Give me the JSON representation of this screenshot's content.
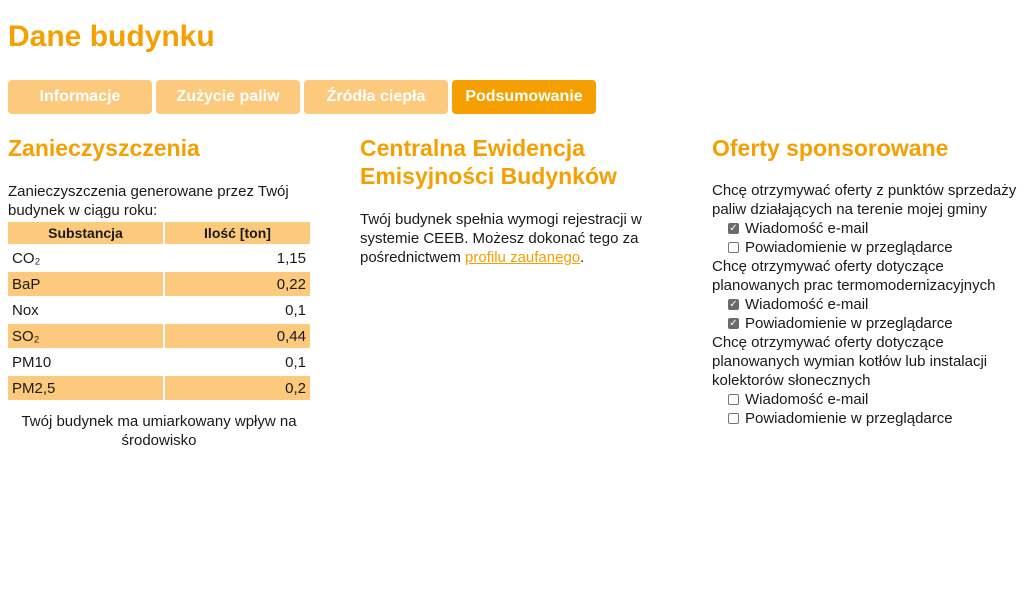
{
  "page": {
    "title": "Dane budynku"
  },
  "tabs": [
    {
      "label": "Informacje",
      "active": false
    },
    {
      "label": "Zużycie paliw",
      "active": false
    },
    {
      "label": "Źródła ciepła",
      "active": false
    },
    {
      "label": "Podsumowanie",
      "active": true
    }
  ],
  "pollution": {
    "heading": "Zanieczyszczenia",
    "intro": "Zanieczyszczenia generowane przez Twój budynek w ciągu roku:",
    "table": {
      "headers": [
        "Substancja",
        "Ilość [ton]"
      ],
      "rows": [
        {
          "substance": "CO₂",
          "amount": "1,15"
        },
        {
          "substance": "BaP",
          "amount": "0,22"
        },
        {
          "substance": "Nox",
          "amount": "0,1"
        },
        {
          "substance": "SO₂",
          "amount": "0,44"
        },
        {
          "substance": "PM10",
          "amount": "0,1"
        },
        {
          "substance": "PM2,5",
          "amount": "0,2"
        }
      ]
    },
    "impact": "Twój budynek ma umiarkowany wpływ na środowisko"
  },
  "ceeb": {
    "heading": "Centralna Ewidencja Emisyjności Budynków",
    "text_before": "Twój budynek spełnia wymogi rejestracji w systemie CEEB. Możesz dokonać tego za pośrednictwem ",
    "link": "profilu zaufanego",
    "text_after": "."
  },
  "offers": {
    "heading": "Oferty sponsorowane",
    "groups": [
      {
        "question": "Chcę otrzymywać oferty z punktów sprzedaży paliw działających na terenie mojej gminy",
        "email_label": "Wiadomość e-mail",
        "email_checked": true,
        "browser_label": "Powiadomienie w przeglądarce",
        "browser_checked": false
      },
      {
        "question": "Chcę otrzymywać oferty dotyczące planowanych prac termomodernizacyjnych",
        "email_label": "Wiadomość e-mail",
        "email_checked": true,
        "browser_label": "Powiadomienie w przeglądarce",
        "browser_checked": true
      },
      {
        "question": "Chcę otrzymywać oferty dotyczące planowanych wymian kotłów lub instalacji kolektorów słonecznych",
        "email_label": "Wiadomość e-mail",
        "email_checked": false,
        "browser_label": "Powiadomienie w przeglądarce",
        "browser_checked": false
      }
    ]
  }
}
